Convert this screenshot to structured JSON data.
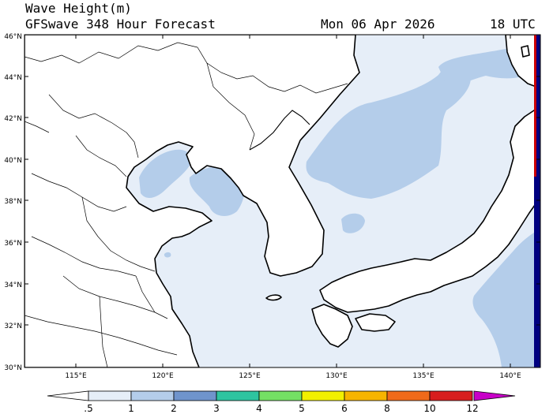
{
  "header": {
    "title": "Wave Height(m)",
    "model": "GFSwave 348 Hour Forecast",
    "date": "Mon 06 Apr 2026",
    "time": "18 UTC"
  },
  "axes": {
    "lat_labels": [
      "46°N",
      "44°N",
      "42°N",
      "40°N",
      "38°N",
      "36°N",
      "34°N",
      "32°N",
      "30°N"
    ],
    "lon_labels": [
      "115°E",
      "120°E",
      "125°E",
      "130°E",
      "135°E",
      "140°E"
    ]
  },
  "colorbar": {
    "labels": [
      ".5",
      "1",
      "2",
      "3",
      "4",
      "5",
      "6",
      "8",
      "10",
      "12"
    ],
    "colors": [
      "#e6eef8",
      "#b4cdea",
      "#6f94cc",
      "#2ec4a0",
      "#74e064",
      "#f2f000",
      "#f6b400",
      "#f06a1a",
      "#d81e1e",
      "#c800c8"
    ]
  },
  "colors": {
    "land": "#ffffff",
    "sea_calm": "#e6eef8",
    "sea_05_1": "#b4cdea",
    "sea_1_2": "#6f94cc",
    "edge_dark": "#000080",
    "edge_red": "#cc0000"
  }
}
